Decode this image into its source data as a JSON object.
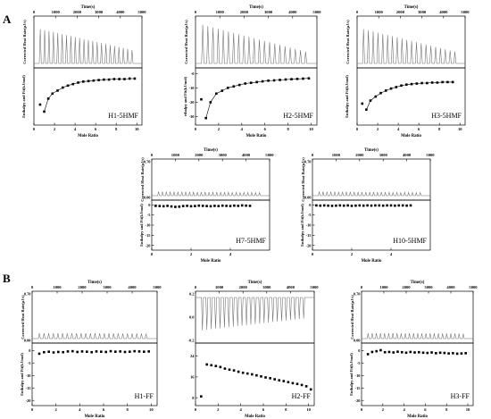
{
  "figure": {
    "panel_labels": [
      "A",
      "B"
    ]
  },
  "chart_data": [
    {
      "type": "scatter",
      "title": "H1-5HMF",
      "top_xlabel": "Time(s)",
      "top_ylabel": "Corrected Heat Rate(μJ/s)",
      "xlabel": "Mole Ratio",
      "ylabel": "Enthalpy and Fit(kJ/mol)",
      "time_ticks": [
        "0",
        "1000",
        "2000",
        "3000",
        "4000",
        "5000"
      ],
      "top_yticks": [],
      "xticks": [
        "0",
        "2",
        "4",
        "6",
        "8",
        "10"
      ],
      "yticks": [],
      "thermogram": {
        "direction": "up",
        "peaks": 22,
        "amp_start": 0.82,
        "amp_end": 0.32
      },
      "series": [
        {
          "x": [
            0.6,
            1.0,
            1.4,
            1.8,
            2.3,
            2.8,
            3.3,
            3.8,
            4.3,
            4.8,
            5.3,
            5.8,
            6.3,
            6.8,
            7.3,
            7.8,
            8.3,
            8.8,
            9.3,
            9.8
          ],
          "y": [
            0.68,
            0.82,
            0.56,
            0.46,
            0.4,
            0.34,
            0.3,
            0.27,
            0.24,
            0.22,
            0.21,
            0.2,
            0.19,
            0.18,
            0.18,
            0.17,
            0.17,
            0.17,
            0.16,
            0.16
          ]
        }
      ]
    },
    {
      "type": "scatter",
      "title": "H2-5HMF",
      "top_xlabel": "Time(s)",
      "top_ylabel": "Corrected Heat Rate(μJ/s)",
      "xlabel": "Mole Ratio",
      "ylabel": "ethalpy and Fit(kJ/mol)",
      "time_ticks": [
        "0",
        "1000",
        "2000",
        "3000",
        "4000",
        "5000"
      ],
      "top_yticks": [],
      "xticks": [
        "0",
        "2",
        "4",
        "6",
        "8",
        "10"
      ],
      "yticks": [
        "-0",
        "-10",
        "-20",
        "-30"
      ],
      "yrange": [
        -34,
        2
      ],
      "thermogram": {
        "direction": "up",
        "peaks": 21,
        "amp_start": 0.92,
        "amp_end": 0.28
      },
      "series": [
        {
          "x": [
            0.5,
            0.9,
            1.3,
            1.8,
            2.3,
            2.8,
            3.3,
            3.8,
            4.3,
            4.8,
            5.3,
            5.8,
            6.3,
            6.8,
            7.3,
            7.8,
            8.3,
            8.8,
            9.3,
            9.8
          ],
          "y": [
            -18,
            -31,
            -20,
            -14,
            -12,
            -10,
            -9,
            -8,
            -7,
            -6.5,
            -6,
            -5.5,
            -5,
            -4.8,
            -4.5,
            -4.2,
            -4,
            -3.8,
            -3.6,
            -3.4
          ]
        }
      ]
    },
    {
      "type": "scatter",
      "title": "H3-5HMF",
      "top_xlabel": "Time(s)",
      "top_ylabel": "Corrected Heat Rate(μJ/s)",
      "xlabel": "Mole Ratio",
      "ylabel": "Enthalpy and Fit(kJ/mol)",
      "time_ticks": [
        "0",
        "1000",
        "2000",
        "3000",
        "4000",
        "5000"
      ],
      "top_yticks": [],
      "xticks": [
        "0",
        "2",
        "4",
        "6",
        "8",
        "10"
      ],
      "yticks": [],
      "thermogram": {
        "direction": "up",
        "peaks": 20,
        "amp_start": 0.82,
        "amp_end": 0.28
      },
      "series": [
        {
          "x": [
            0.5,
            0.9,
            1.3,
            1.8,
            2.3,
            2.8,
            3.3,
            3.8,
            4.3,
            4.8,
            5.3,
            5.8,
            6.3,
            6.8,
            7.3,
            7.8,
            8.3,
            8.8,
            9.3
          ],
          "y": [
            0.66,
            0.78,
            0.6,
            0.52,
            0.45,
            0.4,
            0.36,
            0.33,
            0.3,
            0.28,
            0.27,
            0.26,
            0.25,
            0.25,
            0.24,
            0.24,
            0.23,
            0.23,
            0.23
          ]
        }
      ]
    },
    {
      "type": "scatter",
      "title": "H7-5HMF",
      "top_xlabel": "Time(s)",
      "top_ylabel": "Corrected Heat Rate(μJ/s)",
      "xlabel": "Mole Ratio",
      "ylabel": "Enthalpy and Fit(kJ/mol)",
      "time_ticks": [
        "0",
        "1000",
        "2000",
        "3000",
        "4000",
        "5000"
      ],
      "top_yticks": [
        "0.70",
        "0.00"
      ],
      "xticks": [
        "0",
        "2",
        "4"
      ],
      "xmax": 6,
      "yticks": [
        "0",
        "-5",
        "-10",
        "-15",
        "-20"
      ],
      "yrange": [
        -21,
        1
      ],
      "thermogram": {
        "direction": "up",
        "peaks": 27,
        "amp_start": 0.13,
        "amp_end": 0.1
      },
      "series": [
        {
          "x": [
            0.2,
            0.4,
            0.6,
            0.8,
            1.0,
            1.2,
            1.4,
            1.6,
            1.8,
            2.0,
            2.2,
            2.4,
            2.6,
            2.8,
            3.0,
            3.2,
            3.4,
            3.6,
            3.8,
            4.0,
            4.2,
            4.4,
            4.6,
            4.8,
            5.0
          ],
          "y": [
            -0.5,
            -0.6,
            -0.7,
            -0.5,
            -0.8,
            -1.0,
            -0.9,
            -0.6,
            -0.5,
            -0.7,
            -0.6,
            -0.4,
            -0.5,
            -0.6,
            -0.7,
            -0.5,
            -0.6,
            -0.4,
            -0.5,
            -0.6,
            -0.4,
            -0.5,
            -0.3,
            -0.4,
            -0.5
          ]
        }
      ]
    },
    {
      "type": "scatter",
      "title": "H10-5HMF",
      "top_xlabel": "Time(s)",
      "top_ylabel": "Corrected Heat Rate(μJ/s)",
      "xlabel": "Mole Ratio",
      "ylabel": "Enthalpy and Fit(kJ/mol)",
      "time_ticks": [
        "0",
        "1000",
        "2000",
        "3000",
        "4000",
        "5000"
      ],
      "top_yticks": [
        "0.70",
        "0.00"
      ],
      "xticks": [
        "0",
        "2",
        "4"
      ],
      "xmax": 6,
      "yticks": [
        "0",
        "-5",
        "-10",
        "-15",
        "-20"
      ],
      "yrange": [
        -21,
        1
      ],
      "thermogram": {
        "direction": "up",
        "peaks": 27,
        "amp_start": 0.13,
        "amp_end": 0.1
      },
      "series": [
        {
          "x": [
            0.2,
            0.4,
            0.6,
            0.8,
            1.0,
            1.2,
            1.4,
            1.6,
            1.8,
            2.0,
            2.2,
            2.4,
            2.6,
            2.8,
            3.0,
            3.2,
            3.4,
            3.6,
            3.8,
            4.0,
            4.2,
            4.4,
            4.6,
            4.8,
            5.0
          ],
          "y": [
            -0.3,
            -0.4,
            -0.3,
            -0.4,
            -0.5,
            -0.4,
            -0.3,
            -0.4,
            -0.3,
            -0.5,
            -0.4,
            -0.3,
            -0.4,
            -0.3,
            -0.4,
            -0.3,
            -0.3,
            -0.4,
            -0.3,
            -0.3,
            -0.4,
            -0.3,
            -0.3,
            -0.4,
            -0.3
          ]
        }
      ]
    },
    {
      "type": "scatter",
      "title": "H1-FF",
      "top_xlabel": "Time(s)",
      "top_ylabel": "Corrected Heat Rate(μJ/s)",
      "xlabel": "Mole Ratio",
      "ylabel": "Enthalpy and Fit(kJ/mol)",
      "time_ticks": [
        "0",
        "1000",
        "2000",
        "3000",
        "4000",
        "5000"
      ],
      "top_yticks": [
        "0.70",
        "0.00"
      ],
      "xticks": [
        "0",
        "2",
        "4",
        "6",
        "8",
        "10"
      ],
      "yticks": [
        "0",
        "-5",
        "-10",
        "-15",
        "-20"
      ],
      "yrange": [
        -21,
        2
      ],
      "thermogram": {
        "direction": "up",
        "peaks": 24,
        "amp_start": 0.13,
        "amp_end": 0.12
      },
      "series": [
        {
          "x": [
            0.6,
            1.0,
            1.4,
            1.8,
            2.2,
            2.6,
            3.0,
            3.4,
            3.8,
            4.2,
            4.6,
            5.0,
            5.4,
            5.8,
            6.2,
            6.6,
            7.0,
            7.4,
            7.8,
            8.2,
            8.6,
            9.0,
            9.4,
            9.8
          ],
          "y": [
            -1.2,
            -0.6,
            -0.4,
            -0.7,
            -0.5,
            -0.6,
            -0.3,
            -0.2,
            -0.5,
            -0.3,
            -0.4,
            -0.6,
            -0.3,
            -0.4,
            -0.5,
            -0.2,
            -0.4,
            -0.3,
            -0.5,
            -0.4,
            -0.2,
            -0.3,
            -0.4,
            -0.3
          ]
        }
      ]
    },
    {
      "type": "scatter",
      "title": "H2-FF",
      "top_xlabel": "Time(s)",
      "top_ylabel": "",
      "xlabel": "Mole Ratio",
      "ylabel": "",
      "time_ticks": [
        "0",
        "1000",
        "2000",
        "3000",
        "4000",
        "5000"
      ],
      "top_yticks": [
        "0.2",
        "0.0",
        "-0.2"
      ],
      "xticks": [
        "0",
        "2",
        "4",
        "6",
        "8",
        "10"
      ],
      "yticks": [
        "24",
        "16",
        "8"
      ],
      "yrange": [
        6,
        28
      ],
      "thermogram": {
        "direction": "down",
        "peaks": 24,
        "amp_start": 0.78,
        "amp_end": 0.5
      },
      "series": [
        {
          "x": [
            0.5,
            1.0,
            1.4,
            1.8,
            2.2,
            2.6,
            3.0,
            3.4,
            3.8,
            4.2,
            4.6,
            5.0,
            5.4,
            5.8,
            6.2,
            6.6,
            7.0,
            7.4,
            7.8,
            8.2,
            8.6,
            9.0,
            9.4,
            9.8,
            10.2
          ],
          "y": [
            8.5,
            20.8,
            20.5,
            20.2,
            19.8,
            19.2,
            18.8,
            18.5,
            18.0,
            17.6,
            17.3,
            17.0,
            16.6,
            16.2,
            15.8,
            15.5,
            15.1,
            14.7,
            14.4,
            14.0,
            13.6,
            13.3,
            12.9,
            12.4,
            11.2
          ]
        }
      ]
    },
    {
      "type": "scatter",
      "title": "H3-FF",
      "top_xlabel": "Time(s)",
      "top_ylabel": "Corrected Heat Rate(μJ/s)",
      "xlabel": "Mole Ratio",
      "ylabel": "Enthalpy and Fit(kJ/mol)",
      "time_ticks": [
        "0",
        "1000",
        "2000",
        "3000",
        "4000",
        "5000"
      ],
      "top_yticks": [
        "0.70",
        "0.00"
      ],
      "xticks": [
        "0",
        "2",
        "4",
        "6",
        "8",
        "10"
      ],
      "yticks": [
        "0",
        "-5",
        "-10",
        "-15",
        "-20"
      ],
      "yrange": [
        -21,
        2
      ],
      "thermogram": {
        "direction": "up",
        "peaks": 24,
        "amp_start": 0.13,
        "amp_end": 0.12
      },
      "series": [
        {
          "x": [
            0.6,
            1.0,
            1.4,
            1.8,
            2.2,
            2.6,
            3.0,
            3.4,
            3.8,
            4.2,
            4.6,
            5.0,
            5.4,
            5.8,
            6.2,
            6.6,
            7.0,
            7.4,
            7.8,
            8.2,
            8.6,
            9.0,
            9.4,
            9.8
          ],
          "y": [
            -1.4,
            -0.5,
            -0.2,
            0.2,
            -0.6,
            -0.5,
            -0.7,
            -0.4,
            -0.6,
            -0.8,
            -0.5,
            -0.7,
            -0.6,
            -0.8,
            -0.9,
            -0.7,
            -1.0,
            -0.8,
            -0.9,
            -1.1,
            -1.0,
            -1.2,
            -1.1,
            -1.0
          ]
        }
      ]
    }
  ]
}
